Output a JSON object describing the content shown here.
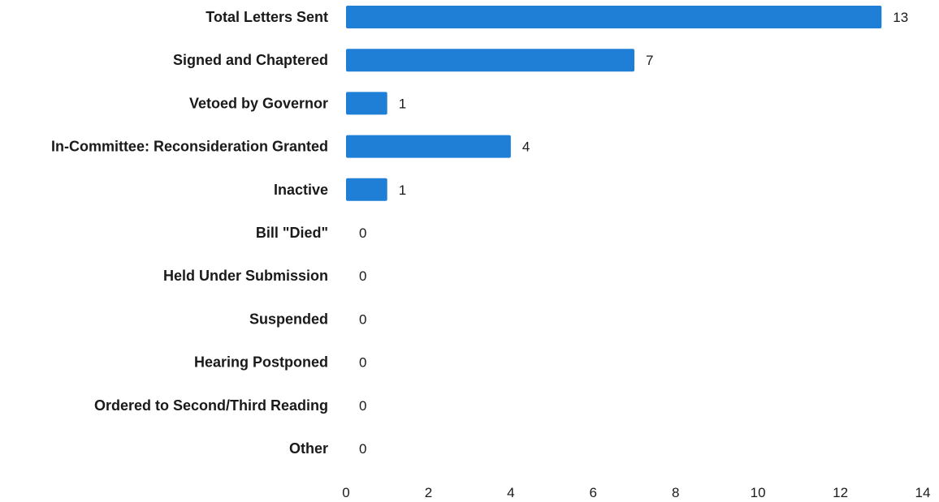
{
  "chart_data": {
    "type": "bar",
    "orientation": "horizontal",
    "categories": [
      "Total Letters Sent",
      "Signed and Chaptered",
      "Vetoed by Governor",
      "In-Committee: Reconsideration Granted",
      "Inactive",
      "Bill \"Died\"",
      "Held Under Submission",
      "Suspended",
      "Hearing Postponed",
      "Ordered to Second/Third Reading",
      "Other"
    ],
    "values": [
      13,
      7,
      1,
      4,
      1,
      0,
      0,
      0,
      0,
      0,
      0
    ],
    "xlim": [
      0,
      14
    ],
    "xticks": [
      0,
      2,
      4,
      6,
      8,
      10,
      12,
      14
    ],
    "title": "",
    "xlabel": "",
    "ylabel": "",
    "grid": false,
    "legend": "none",
    "data_labels": true,
    "bar_color": "#1f7fd6"
  }
}
